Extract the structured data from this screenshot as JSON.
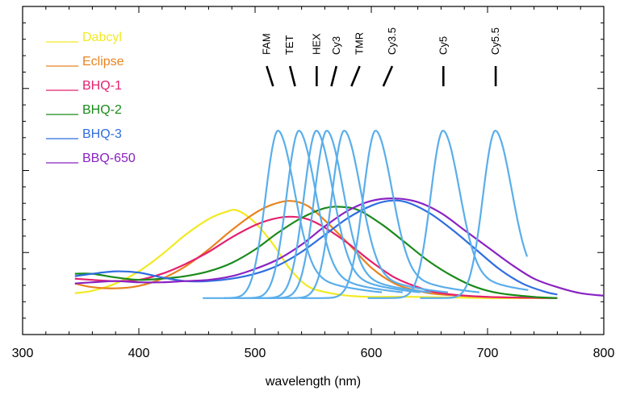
{
  "chart_data": {
    "type": "line",
    "xlabel": "wavelength (nm)",
    "ylabel": "",
    "xlim": [
      300,
      800
    ],
    "ylim": [
      -0.3,
      2.4
    ],
    "x_ticks": [
      "300",
      "400",
      "500",
      "600",
      "700",
      "800"
    ],
    "grid": false,
    "legend_position": "top-left",
    "quenchers": [
      {
        "name": "Dabcyl",
        "color": "#f2ea22",
        "points": [
          [
            345,
            0.04
          ],
          [
            360,
            0.06
          ],
          [
            380,
            0.12
          ],
          [
            400,
            0.22
          ],
          [
            420,
            0.36
          ],
          [
            440,
            0.52
          ],
          [
            460,
            0.65
          ],
          [
            475,
            0.71
          ],
          [
            485,
            0.72
          ],
          [
            500,
            0.62
          ],
          [
            515,
            0.45
          ],
          [
            530,
            0.24
          ],
          [
            545,
            0.1
          ],
          [
            560,
            0.05
          ],
          [
            580,
            0.02
          ],
          [
            600,
            0.01
          ],
          [
            640,
            0.01
          ],
          [
            700,
            0.0
          ],
          [
            760,
            0.0
          ]
        ]
      },
      {
        "name": "Eclipse",
        "color": "#e8831f",
        "points": [
          [
            345,
            0.12
          ],
          [
            360,
            0.09
          ],
          [
            380,
            0.08
          ],
          [
            400,
            0.1
          ],
          [
            420,
            0.16
          ],
          [
            440,
            0.26
          ],
          [
            460,
            0.4
          ],
          [
            480,
            0.56
          ],
          [
            500,
            0.7
          ],
          [
            515,
            0.77
          ],
          [
            530,
            0.8
          ],
          [
            545,
            0.76
          ],
          [
            560,
            0.64
          ],
          [
            580,
            0.45
          ],
          [
            600,
            0.25
          ],
          [
            620,
            0.12
          ],
          [
            640,
            0.06
          ],
          [
            660,
            0.03
          ],
          [
            700,
            0.01
          ],
          [
            760,
            0.0
          ]
        ]
      },
      {
        "name": "BHQ-1",
        "color": "#e5206e",
        "points": [
          [
            345,
            0.16
          ],
          [
            360,
            0.15
          ],
          [
            380,
            0.14
          ],
          [
            400,
            0.15
          ],
          [
            420,
            0.2
          ],
          [
            440,
            0.28
          ],
          [
            460,
            0.38
          ],
          [
            480,
            0.5
          ],
          [
            500,
            0.6
          ],
          [
            515,
            0.65
          ],
          [
            530,
            0.67
          ],
          [
            545,
            0.65
          ],
          [
            560,
            0.58
          ],
          [
            580,
            0.45
          ],
          [
            600,
            0.3
          ],
          [
            620,
            0.17
          ],
          [
            640,
            0.09
          ],
          [
            660,
            0.04
          ],
          [
            700,
            0.01
          ],
          [
            760,
            0.0
          ]
        ]
      },
      {
        "name": "BHQ-2",
        "color": "#1a8a1a",
        "points": [
          [
            345,
            0.2
          ],
          [
            360,
            0.2
          ],
          [
            380,
            0.17
          ],
          [
            400,
            0.15
          ],
          [
            420,
            0.16
          ],
          [
            440,
            0.18
          ],
          [
            460,
            0.22
          ],
          [
            480,
            0.29
          ],
          [
            500,
            0.4
          ],
          [
            520,
            0.54
          ],
          [
            540,
            0.66
          ],
          [
            560,
            0.74
          ],
          [
            575,
            0.75
          ],
          [
            590,
            0.72
          ],
          [
            610,
            0.6
          ],
          [
            630,
            0.45
          ],
          [
            650,
            0.3
          ],
          [
            670,
            0.18
          ],
          [
            690,
            0.09
          ],
          [
            710,
            0.04
          ],
          [
            740,
            0.01
          ],
          [
            760,
            0.0
          ]
        ]
      },
      {
        "name": "BHQ-3",
        "color": "#2f6ee0",
        "points": [
          [
            345,
            0.18
          ],
          [
            360,
            0.2
          ],
          [
            380,
            0.22
          ],
          [
            400,
            0.21
          ],
          [
            420,
            0.17
          ],
          [
            440,
            0.14
          ],
          [
            460,
            0.14
          ],
          [
            480,
            0.16
          ],
          [
            500,
            0.2
          ],
          [
            520,
            0.27
          ],
          [
            540,
            0.38
          ],
          [
            560,
            0.52
          ],
          [
            580,
            0.66
          ],
          [
            600,
            0.76
          ],
          [
            615,
            0.8
          ],
          [
            630,
            0.79
          ],
          [
            650,
            0.7
          ],
          [
            670,
            0.56
          ],
          [
            690,
            0.4
          ],
          [
            710,
            0.24
          ],
          [
            730,
            0.12
          ],
          [
            750,
            0.05
          ],
          [
            760,
            0.03
          ]
        ]
      },
      {
        "name": "BBQ-650",
        "color": "#8a22c2",
        "points": [
          [
            345,
            0.12
          ],
          [
            360,
            0.13
          ],
          [
            380,
            0.14
          ],
          [
            400,
            0.13
          ],
          [
            420,
            0.13
          ],
          [
            440,
            0.14
          ],
          [
            460,
            0.15
          ],
          [
            480,
            0.18
          ],
          [
            500,
            0.24
          ],
          [
            520,
            0.32
          ],
          [
            540,
            0.44
          ],
          [
            560,
            0.59
          ],
          [
            580,
            0.72
          ],
          [
            600,
            0.8
          ],
          [
            620,
            0.82
          ],
          [
            640,
            0.79
          ],
          [
            660,
            0.7
          ],
          [
            680,
            0.56
          ],
          [
            700,
            0.42
          ],
          [
            720,
            0.28
          ],
          [
            740,
            0.16
          ],
          [
            760,
            0.09
          ],
          [
            780,
            0.04
          ],
          [
            800,
            0.02
          ]
        ]
      }
    ],
    "dyes": [
      {
        "name": "FAM",
        "peak": 520,
        "label_x": 510,
        "color": "#5aaeea"
      },
      {
        "name": "TET",
        "peak": 538,
        "label_x": 530,
        "color": "#5aaeea"
      },
      {
        "name": "HEX",
        "peak": 553,
        "label_x": 553,
        "color": "#5aaeea"
      },
      {
        "name": "Cy3",
        "peak": 562,
        "label_x": 570,
        "color": "#5aaeea"
      },
      {
        "name": "TMR",
        "peak": 577,
        "label_x": 590,
        "color": "#5aaeea"
      },
      {
        "name": "Cy3.5",
        "peak": 604,
        "label_x": 618,
        "color": "#5aaeea"
      },
      {
        "name": "Cy5",
        "peak": 662,
        "label_x": 662,
        "color": "#5aaeea"
      },
      {
        "name": "Cy5.5",
        "peak": 707,
        "label_x": 707,
        "color": "#5aaeea"
      }
    ]
  }
}
